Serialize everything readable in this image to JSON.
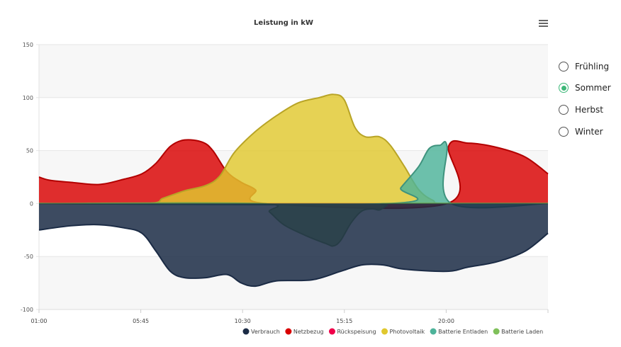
{
  "chart_data": {
    "type": "area",
    "title": "Leistung in kW",
    "ylim": [
      -100,
      150
    ],
    "yticks": [
      150,
      100,
      50,
      0,
      -50,
      -100
    ],
    "xlim": [
      1,
      24.75
    ],
    "xticks": [
      {
        "h": 1,
        "label": "01:00"
      },
      {
        "h": 5.75,
        "label": "05:45"
      },
      {
        "h": 10.5,
        "label": "10:30"
      },
      {
        "h": 15.25,
        "label": "15:15"
      },
      {
        "h": 20,
        "label": "20:00"
      }
    ],
    "legend_position": "bottom-right",
    "series": [
      {
        "name": "Netzbezug",
        "color": "#d90000",
        "points": [
          [
            1,
            25
          ],
          [
            1.5,
            22
          ],
          [
            2.49,
            20
          ],
          [
            3.81,
            18
          ],
          [
            4.97,
            23
          ],
          [
            5.8,
            28
          ],
          [
            6.46,
            38
          ],
          [
            7.13,
            54
          ],
          [
            7.79,
            60
          ],
          [
            8.62,
            58
          ],
          [
            9.11,
            50
          ],
          [
            9.77,
            30
          ],
          [
            10.44,
            20
          ],
          [
            11.1,
            13
          ],
          [
            11.6,
            0
          ],
          [
            20.04,
            0
          ],
          [
            20.11,
            54
          ],
          [
            21.03,
            57
          ],
          [
            22.36,
            53
          ],
          [
            23.68,
            44
          ],
          [
            24.75,
            28
          ]
        ]
      },
      {
        "name": "Rückspeisung",
        "color": "#f0004a",
        "points": [
          [
            1,
            0
          ],
          [
            24.75,
            0
          ]
        ]
      },
      {
        "name": "Photovoltaik",
        "color": "#e0c82e",
        "points": [
          [
            1,
            0
          ],
          [
            5.97,
            0
          ],
          [
            6.79,
            5
          ],
          [
            7.79,
            12
          ],
          [
            8.78,
            17
          ],
          [
            9.44,
            26
          ],
          [
            10.11,
            48
          ],
          [
            11.1,
            68
          ],
          [
            12.09,
            83
          ],
          [
            13.09,
            95
          ],
          [
            14.08,
            100
          ],
          [
            14.74,
            103
          ],
          [
            15.24,
            98
          ],
          [
            15.74,
            72
          ],
          [
            16.23,
            63
          ],
          [
            16.89,
            63
          ],
          [
            17.39,
            55
          ],
          [
            18.05,
            35
          ],
          [
            18.72,
            13
          ],
          [
            19.38,
            3
          ],
          [
            20.04,
            0
          ],
          [
            24.75,
            0
          ]
        ]
      },
      {
        "name": "Batterie Entladen",
        "color": "#4db39a",
        "points": [
          [
            1,
            0
          ],
          [
            17.32,
            0
          ],
          [
            17.89,
            15
          ],
          [
            18.72,
            35
          ],
          [
            19.21,
            52
          ],
          [
            19.71,
            55
          ],
          [
            20.04,
            54
          ],
          [
            20.24,
            0
          ],
          [
            24.75,
            0
          ]
        ]
      },
      {
        "name": "Batterie Laden",
        "color": "#7fc05a",
        "points": [
          [
            1,
            0
          ],
          [
            11.26,
            0
          ],
          [
            11.76,
            -8
          ],
          [
            12.42,
            -20
          ],
          [
            13.42,
            -30
          ],
          [
            14.41,
            -38
          ],
          [
            14.74,
            -40
          ],
          [
            15.07,
            -35
          ],
          [
            15.57,
            -18
          ],
          [
            16.07,
            -7
          ],
          [
            16.56,
            -5
          ],
          [
            16.89,
            -6
          ],
          [
            17.23,
            -2
          ],
          [
            17.56,
            0
          ],
          [
            24.75,
            0
          ]
        ]
      },
      {
        "name": "Verbrauch",
        "color": "#1b2b45",
        "points": [
          [
            1,
            -25
          ],
          [
            2.49,
            -21
          ],
          [
            3.81,
            -20
          ],
          [
            4.97,
            -23
          ],
          [
            5.8,
            -28
          ],
          [
            6.46,
            -45
          ],
          [
            7.13,
            -64
          ],
          [
            7.79,
            -70
          ],
          [
            8.78,
            -70
          ],
          [
            9.77,
            -67
          ],
          [
            10.44,
            -75
          ],
          [
            11.1,
            -78
          ],
          [
            12.09,
            -73
          ],
          [
            13.75,
            -72
          ],
          [
            15.07,
            -64
          ],
          [
            16.07,
            -58
          ],
          [
            17.06,
            -58
          ],
          [
            18.05,
            -62
          ],
          [
            20.04,
            -64
          ],
          [
            21.03,
            -60
          ],
          [
            22.36,
            -55
          ],
          [
            23.68,
            -45
          ],
          [
            24.75,
            -28
          ]
        ]
      }
    ],
    "legend": [
      "Verbrauch",
      "Netzbezug",
      "Rückspeisung",
      "Photovoltaik",
      "Batterie Entladen",
      "Batterie Laden"
    ]
  },
  "season_options": [
    {
      "label": "Frühling",
      "selected": false
    },
    {
      "label": "Sommer",
      "selected": true
    },
    {
      "label": "Herbst",
      "selected": false
    },
    {
      "label": "Winter",
      "selected": false
    }
  ]
}
